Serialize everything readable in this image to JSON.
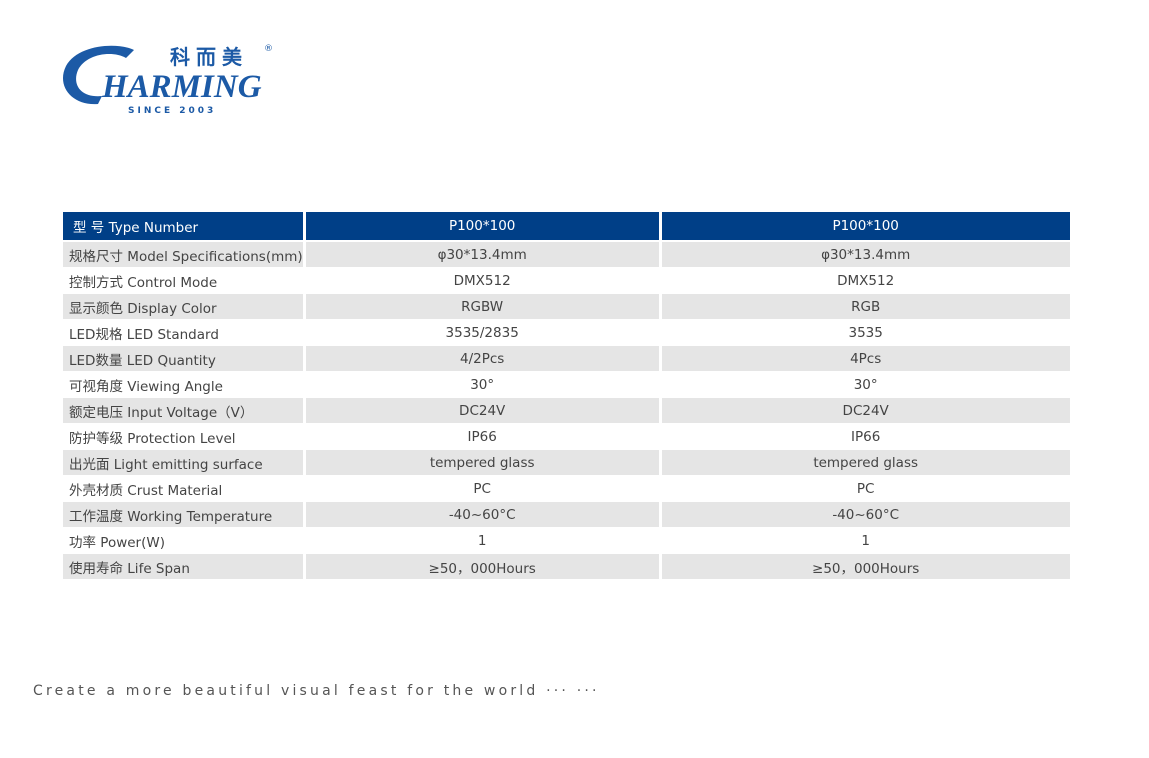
{
  "logo": {
    "brand": "CHARMING",
    "cn": "科而美",
    "since": "SINCE 2003"
  },
  "table": {
    "header": [
      "型  号 Type Number",
      "P100*100",
      "P100*100"
    ],
    "rows": [
      [
        "规格尺寸 Model Specifications(mm)",
        "φ30*13.4mm",
        "φ30*13.4mm"
      ],
      [
        "控制方式 Control Mode",
        "DMX512",
        "DMX512"
      ],
      [
        "显示颜色 Display Color",
        "RGBW",
        "RGB"
      ],
      [
        "LED规格 LED Standard",
        "3535/2835",
        "3535"
      ],
      [
        "LED数量 LED Quantity",
        "4/2Pcs",
        "4Pcs"
      ],
      [
        "可视角度 Viewing Angle",
        "30°",
        "30°"
      ],
      [
        "额定电压 Input Voltage（V）",
        "DC24V",
        "DC24V"
      ],
      [
        "防护等级 Protection Level",
        "IP66",
        "IP66"
      ],
      [
        "出光面 Light emitting surface",
        "tempered glass",
        "tempered glass"
      ],
      [
        "外壳材质 Crust Material",
        "PC",
        "PC"
      ],
      [
        "工作温度 Working Temperature",
        "-40~60°C",
        "-40~60°C"
      ],
      [
        "功率 Power(W)",
        "1",
        "1"
      ],
      [
        "使用寿命 Life Span",
        "≥50，000Hours",
        "≥50，000Hours"
      ]
    ]
  },
  "footer": {
    "tagline": "Create a more beautiful visual feast for the world ··· ···"
  },
  "colors": {
    "header": "#003f87",
    "brand": "#1c5aa6",
    "row_alt": "#e5e5e5"
  }
}
